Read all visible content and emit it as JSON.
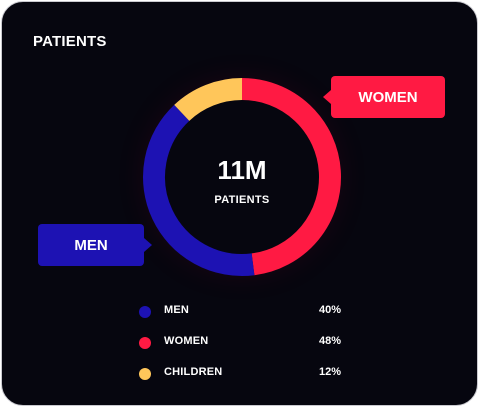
{
  "card": {
    "title": "PATIENTS"
  },
  "center": {
    "value": "11M",
    "label": "PATIENTS"
  },
  "callouts": {
    "women": "WOMEN",
    "men": "MEN"
  },
  "colors": {
    "men": "#1d12b3",
    "women": "#ff1a43",
    "children": "#ffc65a",
    "background": "#06060f"
  },
  "chart_data": {
    "type": "pie",
    "variant": "donut",
    "center_text": "11M",
    "center_subtext": "PATIENTS",
    "series": [
      {
        "name": "MEN",
        "value": 40,
        "display": "40%",
        "color": "#1d12b3"
      },
      {
        "name": "WOMEN",
        "value": 48,
        "display": "48%",
        "color": "#ff1a43"
      },
      {
        "name": "CHILDREN",
        "value": 12,
        "display": "12%",
        "color": "#ffc65a"
      }
    ]
  }
}
